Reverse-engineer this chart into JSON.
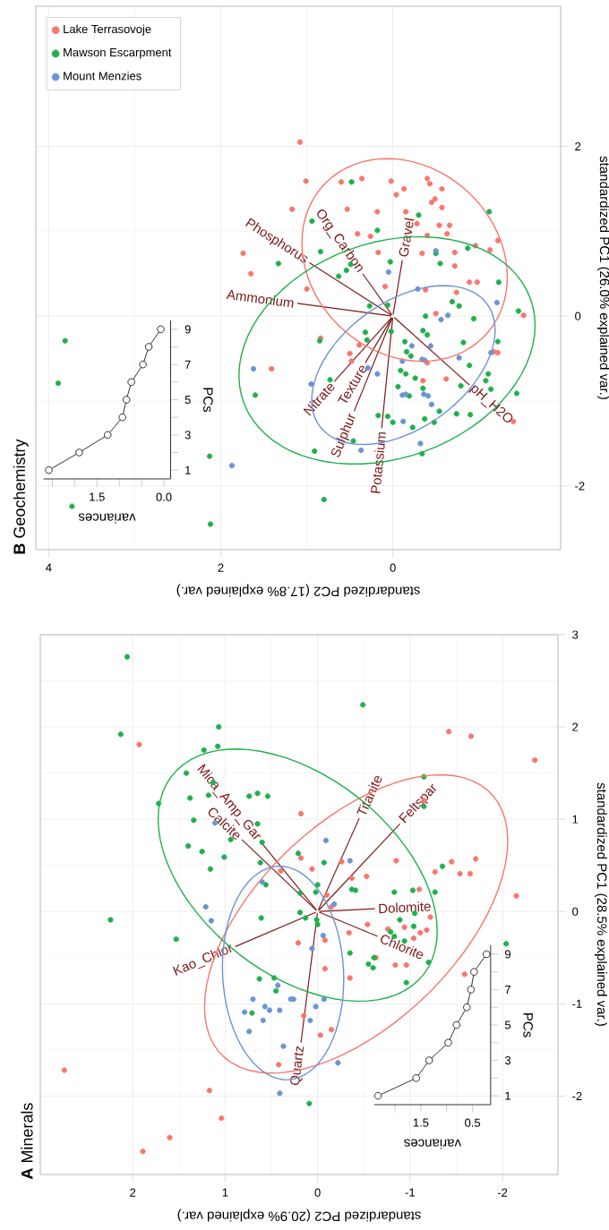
{
  "chart_data": [
    {
      "type": "scatter",
      "title": "**A** Minerals",
      "xlabel": "standardized PC2 (20.9% explained var.)",
      "ylabel": "standardized PC1 (28.5% explained var.)",
      "xlim": [
        3.0,
        -2.6
      ],
      "ylim": [
        -2.85,
        3.0
      ],
      "xticks": [
        2,
        1,
        0,
        -1,
        -2
      ],
      "yticks": [
        -2,
        -1,
        0,
        1,
        2,
        3
      ],
      "grid": true,
      "marker": "circle",
      "series": [
        {
          "color": "#f8766d",
          "values": [
            1.81,
            1.06,
            1.95,
            1.9,
            1.64,
            1.2,
            0.58,
            0.44,
            0.46,
            0.54,
            0.36,
            0.38,
            0.55,
            0.54,
            0.57,
            0.43,
            0.41,
            0.41,
            0.17,
            0.24,
            0.18,
            0.05,
            -0.06,
            -0.14,
            -0.19,
            -0.17,
            -0.29,
            -0.23,
            -0.2,
            -0.23,
            -0.34,
            -0.31,
            -0.62,
            -0.72,
            -0.5,
            -0.58,
            -0.58,
            -0.68,
            -1.13,
            -1.34,
            -1.28,
            -1.66,
            -1.72,
            -1.94,
            -2.24,
            -2.45,
            -2.6
          ],
          "x": [
            1.93,
            0.18,
            -1.42,
            -1.66,
            -2.35,
            -1.15,
            0.18,
            0.4,
            0.06,
            -0.26,
            -0.37,
            -0.53,
            -0.85,
            -1.45,
            -1.71,
            -1.27,
            -1.54,
            -1.65,
            -2.15,
            -1.1,
            -0.1,
            -0.15,
            -1.22,
            -0.54,
            -0.76,
            -0.94,
            -1.04,
            -1.11,
            -1.18,
            -0.34,
            0.21,
            -0.08,
            -0.08,
            -0.35,
            -0.63,
            -0.84,
            -0.96,
            -1.59,
            0.15,
            -0.03,
            -0.15,
            0.42,
            2.74,
            1.17,
            1.04,
            1.6,
            1.89
          ]
        },
        {
          "color": "#1fb04c",
          "values": [
            2.76,
            2.24,
            1.92,
            2.0,
            1.79,
            1.75,
            1.17,
            1.5,
            1.4,
            1.23,
            1.26,
            1.25,
            1.28,
            1.25,
            0.99,
            0.95,
            0.78,
            0.75,
            0.71,
            0.65,
            0.59,
            0.46,
            0.53,
            0.29,
            0.63,
            0.53,
            0.2,
            0.29,
            0.21,
            0.23,
            0.24,
            0.21,
            0.23,
            0.21,
            0.49,
            1.46,
            1.14,
            -0.01,
            -0.07,
            -0.09,
            -0.02,
            -0.09,
            -0.07,
            -0.09,
            -0.14,
            -0.3,
            -0.73,
            -0.72,
            -0.86,
            -1.1,
            -0.45,
            -0.5,
            -0.57,
            -0.61,
            -0.77,
            -0.55,
            -0.22,
            -0.27,
            -0.32,
            -0.16,
            -0.35,
            -2.08
          ],
          "x": [
            2.06,
            -0.49,
            2.13,
            1.07,
            1.08,
            1.23,
            1.72,
            1.42,
            1.13,
            1.38,
            1.18,
            0.74,
            0.65,
            0.54,
            1.34,
            0.65,
            0.94,
            0.6,
            1.4,
            1.25,
            1.01,
            1.16,
            0.62,
            0.56,
            0.21,
            -0.07,
            0.19,
            0.0,
            0.02,
            -0.41,
            -0.37,
            -0.83,
            -1.03,
            -1.27,
            -1.35,
            -1.15,
            -1.15,
            0.19,
            0.61,
            2.24,
            -1.05,
            -0.89,
            0.13,
            0.01,
            0.0,
            1.53,
            0.63,
            0.47,
            0.45,
            0.71,
            -0.35,
            -0.61,
            -0.55,
            -0.6,
            -0.96,
            -1.2,
            -0.79,
            -0.83,
            -0.94,
            -1.04,
            -2.04,
            0.09
          ]
        },
        {
          "color": "#6a94d4",
          "values": [
            0.77,
            0.55,
            0.96,
            0.32,
            0.08,
            0.05,
            -0.1,
            -0.26,
            -0.4,
            -0.8,
            -0.95,
            -0.95,
            -0.95,
            -0.95,
            -1.03,
            -1.03,
            -1.07,
            -1.07,
            -1.09,
            -1.18,
            -1.18,
            -1.3,
            -1.46,
            -1.64,
            -1.97
          ],
          "x": [
            -0.09,
            -0.35,
            1.11,
            0.6,
            -0.18,
            1.21,
            1.15,
            -0.06,
            0.06,
            0.43,
            0.7,
            0.29,
            0.26,
            -0.07,
            0.02,
            0.57,
            0.52,
            0.41,
            0.79,
            0.59,
            0.08,
            0.74,
            0.37,
            -0.22,
            0.41
          ]
        },
        {
          "type": "line",
          "marker": "none",
          "name": "Kao_Chlor",
          "color": "#7f1a1a",
          "x": [
            0,
            0.89
          ],
          "values": [
            0,
            -0.38
          ]
        },
        {
          "type": "line",
          "marker": "none",
          "name": "Quartz",
          "color": "#7f1a1a",
          "x": [
            0,
            0.18
          ],
          "values": [
            0,
            -1.42
          ]
        },
        {
          "type": "line",
          "marker": "none",
          "name": "Chlorite",
          "color": "#7f1a1a",
          "x": [
            0,
            -0.65
          ],
          "values": [
            0,
            -0.27
          ]
        },
        {
          "type": "line",
          "marker": "none",
          "name": "Dolomite",
          "color": "#7f1a1a",
          "x": [
            0,
            -0.62
          ],
          "values": [
            0,
            0.03
          ]
        },
        {
          "type": "line",
          "marker": "none",
          "name": "Titanite",
          "color": "#7f1a1a",
          "x": [
            0,
            -0.45
          ],
          "values": [
            0,
            1.01
          ]
        },
        {
          "type": "line",
          "marker": "none",
          "name": "Feltspar",
          "color": "#7f1a1a",
          "x": [
            0,
            -0.89
          ],
          "values": [
            0,
            0.95
          ]
        },
        {
          "type": "line",
          "marker": "none",
          "name": "Calcite",
          "color": "#7f1a1a",
          "x": [
            0,
            0.82
          ],
          "values": [
            0,
            0.78
          ]
        },
        {
          "type": "line",
          "marker": "none",
          "name": "Mica_Amp_Gar",
          "color": "#7f1a1a",
          "x": [
            0,
            0.62
          ],
          "values": [
            0,
            0.76
          ]
        }
      ]
    },
    {
      "type": "line",
      "xlabel": "variances",
      "ylabel": "PCs",
      "xlim": [
        2.4,
        0.15
      ],
      "ylim": [
        0.5,
        9.5
      ],
      "marker": "circle",
      "xticks": [
        {
          "value": 2.0,
          "label": null
        },
        1.5,
        {
          "value": 1.0,
          "label": null
        },
        0.5
      ],
      "yticks": [
        1,
        {
          "value": 2,
          "label": null
        },
        3,
        {
          "value": 4,
          "label": null
        },
        5,
        {
          "value": 6,
          "label": null
        },
        7,
        {
          "value": 8,
          "label": null
        },
        9
      ],
      "series": [
        {
          "color": "#000000",
          "x": [
            2.33,
            1.59,
            1.34,
            0.97,
            0.81,
            0.61,
            0.53,
            0.47,
            0.23
          ],
          "values": [
            1,
            2,
            3,
            4,
            5,
            6,
            7,
            8,
            9
          ]
        }
      ]
    },
    {
      "type": "scatter",
      "title": "**B** Geochemistry",
      "xlabel": "standardized PC2 (17.8% explained var.)",
      "ylabel": "standardized PC1 (26.0% explained var.)",
      "xlim": [
        4.15,
        -1.95
      ],
      "ylim": [
        -2.75,
        3.65
      ],
      "xticks": [
        4,
        2,
        0
      ],
      "yticks": [
        -2,
        0,
        2
      ],
      "grid": true,
      "marker": "circle",
      "legend": "top left",
      "series": [
        {
          "name": "Lake Terrasovoje",
          "color": "#f8766d",
          "values": [
            2.05,
            1.59,
            1.58,
            1.62,
            1.59,
            1.62,
            1.56,
            1.5,
            1.5,
            1.43,
            1.26,
            1.26,
            1.23,
            1.23,
            1.34,
            1.38,
            1.28,
            1.07,
            0.97,
            1.07,
            1.09,
            0.97,
            0.94,
            0.95,
            0.75,
            0.74,
            0.75,
            0.59,
            0.83,
            0.78,
            0.89,
            0.74,
            0.5,
            0.32,
            0.35,
            0.28,
            0.4,
            0.4,
            0.31,
            0.03,
            0.01,
            -0.26,
            -0.34,
            -0.44,
            -0.53,
            -0.62,
            -0.55,
            -0.76,
            -0.74,
            -0.42,
            -0.43,
            -1.24
          ],
          "x": [
            1.08,
            1.01,
            0.6,
            0.36,
            0.02,
            -0.4,
            -0.43,
            -0.57,
            -0.13,
            -0.04,
            1.17,
            0.53,
            0.18,
            -0.15,
            -0.45,
            -0.49,
            -0.57,
            -0.54,
            -0.63,
            -0.66,
            -0.28,
            0.41,
            0.26,
            -0.4,
            0.17,
            -0.34,
            -0.72,
            -0.72,
            -0.96,
            -1.13,
            -1.22,
            1.74,
            1.65,
            1.0,
            0.09,
            -0.74,
            -0.89,
            -0.98,
            -0.38,
            -0.5,
            -1.52,
            0.84,
            0.39,
            0.5,
            0.48,
            1.41,
            -0.4,
            -0.35,
            -0.62,
            -1.17,
            -1.22,
            -1.4
          ]
        },
        {
          "name": "Mawson Escarpment",
          "color": "#1fb04c",
          "values": [
            1.58,
            1.12,
            1.19,
            1.23,
            1.01,
            0.76,
            0.62,
            0.61,
            0.54,
            0.47,
            0.64,
            0.74,
            0.62,
            0.8,
            0.4,
            0.12,
            0.13,
            0.17,
            0.12,
            0.0,
            -0.03,
            0.06,
            -0.19,
            -0.28,
            -0.18,
            -0.17,
            -0.22,
            -0.3,
            -0.42,
            -0.47,
            -0.64,
            -0.68,
            -0.73,
            -0.85,
            -0.83,
            -0.94,
            -0.31,
            -0.58,
            -0.76,
            -0.3,
            -0.68,
            -0.82,
            -0.86,
            -0.91,
            -0.29,
            -0.75,
            -0.93,
            -1.17,
            -1.18,
            -1.25,
            -1.21,
            -1.25,
            -1.31,
            -1.12,
            -1.15,
            -1.16,
            -1.47,
            -1.59,
            -1.62,
            -1.65,
            -2.16,
            -2.45,
            -0.29,
            -0.79,
            -2.24
          ],
          "x": [
            0.48,
            0.94,
            -0.3,
            -1.12,
            0.18,
            0.84,
            1.33,
            0.49,
            0.54,
            0.63,
            0.03,
            -0.5,
            -0.55,
            -0.87,
            -1.23,
            0.27,
            0.06,
            -0.69,
            -0.77,
            -0.38,
            -0.94,
            -1.46,
            0.32,
            0.3,
            0.02,
            -0.35,
            -0.4,
            -0.14,
            -0.16,
            -0.21,
            -0.09,
            -0.15,
            -0.26,
            -0.35,
            -0.06,
            -0.19,
            -0.82,
            -0.89,
            -1.08,
            -1.22,
            -1.11,
            -0.79,
            -1.14,
            -1.44,
            0.85,
            0.73,
            1.6,
            0.17,
            0.06,
            0.0,
            -0.37,
            -0.48,
            -0.23,
            -0.54,
            -0.74,
            -0.9,
            0.46,
            0.91,
            -0.34,
            2.13,
            0.8,
            2.12,
            3.81,
            3.89,
            3.73
          ]
        },
        {
          "name": "Mount Menzies",
          "color": "#6a94d4",
          "values": [
            0.52,
            0.77,
            0.32,
            -0.04,
            0.01,
            0.16,
            -0.35,
            -0.35,
            -0.51,
            -0.52,
            -0.49,
            -0.53,
            -0.68,
            -0.61,
            -0.62,
            -0.8,
            -0.93,
            -0.92,
            -0.92,
            -0.94,
            -1.04,
            -1.24,
            -1.5,
            -1.58,
            -1.76,
            -0.43
          ],
          "x": [
            0.05,
            -0.5,
            -0.29,
            -0.56,
            -0.64,
            -1.21,
            -0.22,
            -0.44,
            -0.34,
            -0.37,
            -0.77,
            -0.11,
            0.18,
            0.29,
            1.62,
            0.95,
            -0.11,
            -0.15,
            -0.36,
            -0.41,
            -0.45,
            -0.12,
            -0.32,
            0.37,
            1.87,
            -1.14
          ]
        },
        {
          "type": "line",
          "marker": "none",
          "name": "Ammonium",
          "color": "#7f1a1a",
          "x": [
            0,
            1.11
          ],
          "values": [
            0,
            0.15
          ]
        },
        {
          "type": "line",
          "marker": "none",
          "name": "Phosphorus",
          "color": "#7f1a1a",
          "x": [
            0,
            0.97
          ],
          "values": [
            0,
            0.63
          ]
        },
        {
          "type": "line",
          "marker": "none",
          "name": "Org_Carbon",
          "color": "#7f1a1a",
          "x": [
            0,
            0.35
          ],
          "values": [
            0,
            0.5
          ]
        },
        {
          "type": "line",
          "marker": "none",
          "name": "Gravel",
          "color": "#7f1a1a",
          "x": [
            0,
            -0.11
          ],
          "values": [
            0,
            0.66
          ]
        },
        {
          "type": "line",
          "marker": "none",
          "name": "Nitrate",
          "color": "#7f1a1a",
          "x": [
            0,
            0.68
          ],
          "values": [
            0,
            -0.77
          ]
        },
        {
          "type": "line",
          "marker": "none",
          "name": "Texture",
          "color": "#7f1a1a",
          "x": [
            0,
            0.32
          ],
          "values": [
            0,
            -0.55
          ]
        },
        {
          "type": "line",
          "marker": "none",
          "name": "Sulphur",
          "color": "#7f1a1a",
          "x": [
            0,
            0.45
          ],
          "values": [
            0,
            -1.12
          ]
        },
        {
          "type": "line",
          "marker": "none",
          "name": "Potassium",
          "color": "#7f1a1a",
          "x": [
            0,
            0.13
          ],
          "values": [
            0,
            -1.32
          ]
        },
        {
          "type": "line",
          "marker": "none",
          "name": "pH_H2O",
          "color": "#7f1a1a",
          "x": [
            0,
            -0.89
          ],
          "values": [
            0,
            -0.81
          ]
        }
      ]
    },
    {
      "type": "line",
      "xlabel": "variances",
      "ylabel": "PCs",
      "xlim": [
        2.7,
        -0.15
      ],
      "ylim": [
        0.5,
        9.5
      ],
      "marker": "circle",
      "xticks": [
        {
          "value": 2.5,
          "label": null
        },
        {
          "value": 2.0,
          "label": null
        },
        1.5,
        {
          "value": 1.0,
          "label": null
        },
        {
          "value": 0.5,
          "label": null
        },
        {
          "value": 0.0,
          "label": "0.0"
        }
      ],
      "yticks": [
        1,
        {
          "value": 2,
          "label": null
        },
        3,
        {
          "value": 4,
          "label": null
        },
        5,
        {
          "value": 6,
          "label": null
        },
        7,
        {
          "value": 8,
          "label": null
        },
        9
      ],
      "series": [
        {
          "color": "#000000",
          "x": [
            2.58,
            1.9,
            1.26,
            0.93,
            0.84,
            0.73,
            0.47,
            0.34,
            0.07
          ],
          "values": [
            1,
            2,
            3,
            4,
            5,
            6,
            7,
            8,
            9
          ]
        }
      ]
    }
  ]
}
